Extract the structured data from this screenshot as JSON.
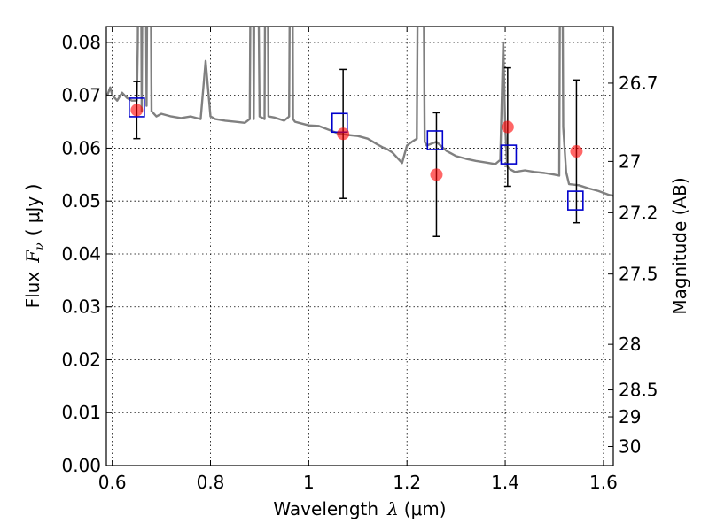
{
  "chart_data": {
    "type": "scatter",
    "xlabel_text": "Wavelength",
    "xlabel_symbol": "λ",
    "xlabel_unit": "(μm)",
    "ylabel_text": "Flux",
    "ylabel_symbol": "F",
    "ylabel_sub": "ν",
    "ylabel_unit": "( μJy )",
    "y2label": "Magnitude (AB)",
    "xlim": [
      0.588,
      1.62
    ],
    "ylim": [
      0.0,
      0.083
    ],
    "grid": true,
    "x_ticks": [
      {
        "value": 0.6,
        "label": "0.6"
      },
      {
        "value": 0.8,
        "label": "0.8"
      },
      {
        "value": 1.0,
        "label": "1"
      },
      {
        "value": 1.2,
        "label": "1.2"
      },
      {
        "value": 1.4,
        "label": "1.4"
      },
      {
        "value": 1.6,
        "label": "1.6"
      }
    ],
    "y_ticks": [
      {
        "value": 0.0,
        "label": "0.00"
      },
      {
        "value": 0.01,
        "label": "0.01"
      },
      {
        "value": 0.02,
        "label": "0.02"
      },
      {
        "value": 0.03,
        "label": "0.03"
      },
      {
        "value": 0.04,
        "label": "0.04"
      },
      {
        "value": 0.05,
        "label": "0.05"
      },
      {
        "value": 0.06,
        "label": "0.06"
      },
      {
        "value": 0.07,
        "label": "0.07"
      },
      {
        "value": 0.08,
        "label": "0.08"
      }
    ],
    "y2_ticks": [
      {
        "flux": 0.0723,
        "label": "26.7"
      },
      {
        "flux": 0.0575,
        "label": "27"
      },
      {
        "flux": 0.0478,
        "label": "27.2"
      },
      {
        "flux": 0.0362,
        "label": "27.5"
      },
      {
        "flux": 0.0229,
        "label": "28"
      },
      {
        "flux": 0.0143,
        "label": "28.5"
      },
      {
        "flux": 0.0092,
        "label": "29"
      },
      {
        "flux": 0.0036,
        "label": "30"
      }
    ],
    "series": [
      {
        "kind": "observed",
        "color": "#ff0000",
        "points": [
          {
            "x": 0.65,
            "y": 0.0672,
            "err": 0.0054
          },
          {
            "x": 1.07,
            "y": 0.0627,
            "err": 0.0122
          },
          {
            "x": 1.26,
            "y": 0.055,
            "err": 0.0117
          },
          {
            "x": 1.405,
            "y": 0.064,
            "err": 0.0112
          },
          {
            "x": 1.545,
            "y": 0.0594,
            "err": 0.0135
          }
        ]
      },
      {
        "kind": "model-photometry",
        "color": "#0000cc",
        "points": [
          {
            "x": 0.65,
            "y": 0.0677
          },
          {
            "x": 1.063,
            "y": 0.0648
          },
          {
            "x": 1.257,
            "y": 0.0615
          },
          {
            "x": 1.407,
            "y": 0.0588
          },
          {
            "x": 1.543,
            "y": 0.0501
          }
        ]
      },
      {
        "kind": "model-spectrum",
        "color": "#808080",
        "x": [
          0.59,
          0.596,
          0.6,
          0.61,
          0.62,
          0.63,
          0.64,
          0.65,
          0.652,
          0.656,
          0.66,
          0.665,
          0.67,
          0.675,
          0.68,
          0.69,
          0.7,
          0.72,
          0.74,
          0.76,
          0.78,
          0.79,
          0.8,
          0.81,
          0.83,
          0.85,
          0.87,
          0.88,
          0.885,
          0.888,
          0.892,
          0.9,
          0.91,
          0.914,
          0.918,
          0.93,
          0.95,
          0.96,
          0.965,
          0.968,
          0.972,
          0.98,
          1.0,
          1.02,
          1.04,
          1.06,
          1.08,
          1.1,
          1.12,
          1.14,
          1.15,
          1.16,
          1.17,
          1.18,
          1.19,
          1.2,
          1.21,
          1.22,
          1.226,
          1.23,
          1.236,
          1.24,
          1.26,
          1.28,
          1.3,
          1.32,
          1.34,
          1.36,
          1.38,
          1.39,
          1.396,
          1.4,
          1.404,
          1.41,
          1.42,
          1.44,
          1.46,
          1.48,
          1.5,
          1.51,
          1.514,
          1.518,
          1.524,
          1.53,
          1.55,
          1.57,
          1.59,
          1.61,
          1.62
        ],
        "y": [
          0.07,
          0.0715,
          0.07,
          0.069,
          0.0705,
          0.0695,
          0.069,
          0.069,
          0.08,
          0.15,
          0.067,
          0.15,
          0.068,
          0.15,
          0.067,
          0.066,
          0.0665,
          0.066,
          0.0657,
          0.066,
          0.0655,
          0.0765,
          0.066,
          0.0655,
          0.0652,
          0.065,
          0.0648,
          0.0655,
          0.15,
          0.0655,
          0.15,
          0.066,
          0.0655,
          0.15,
          0.066,
          0.0658,
          0.0652,
          0.066,
          0.15,
          0.0655,
          0.065,
          0.0648,
          0.0643,
          0.0642,
          0.0635,
          0.0628,
          0.0625,
          0.0623,
          0.0618,
          0.0607,
          0.0602,
          0.0598,
          0.0592,
          0.0582,
          0.0572,
          0.0605,
          0.0612,
          0.0618,
          0.15,
          0.15,
          0.0612,
          0.0605,
          0.0612,
          0.0595,
          0.0585,
          0.058,
          0.0576,
          0.0573,
          0.057,
          0.0578,
          0.08,
          0.064,
          0.0565,
          0.056,
          0.0555,
          0.0558,
          0.0555,
          0.0553,
          0.055,
          0.0548,
          0.15,
          0.064,
          0.0555,
          0.0532,
          0.053,
          0.0524,
          0.0519,
          0.0512,
          0.051
        ]
      }
    ]
  }
}
